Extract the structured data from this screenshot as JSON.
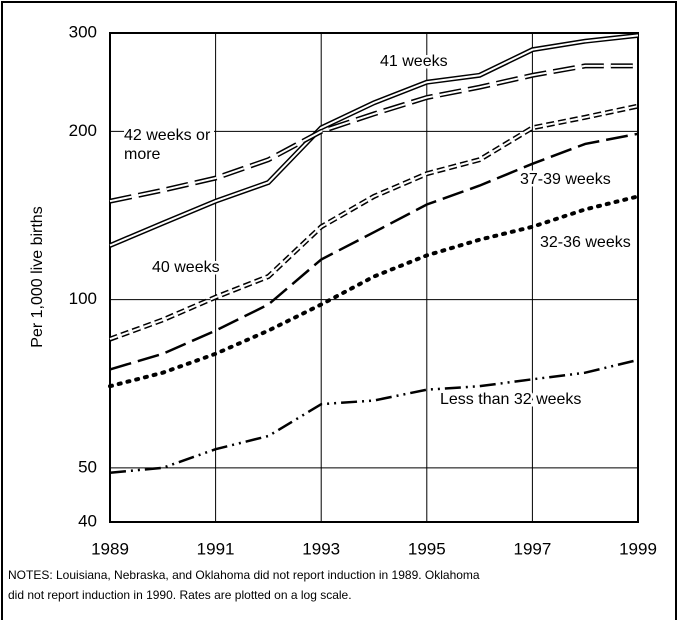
{
  "chart_data": {
    "type": "line",
    "y_label": "Per 1,000 live births",
    "notes": [
      "NOTES: Louisiana, Nebraska, and Oklahoma did not report induction in 1989. Oklahoma",
      "did not report induction in 1990. Rates are plotted on a log scale."
    ],
    "x": [
      1989,
      1990,
      1991,
      1992,
      1993,
      1994,
      1995,
      1996,
      1997,
      1998,
      1999
    ],
    "xlim": [
      1989,
      1999
    ],
    "xticks": [
      1989,
      1991,
      1993,
      1995,
      1997,
      1999
    ],
    "ylim": [
      40,
      300
    ],
    "yticks": [
      40,
      50,
      100,
      200,
      300
    ],
    "log_scale": true,
    "grid": true,
    "series": [
      {
        "name": "41 weeks",
        "color": "#000000",
        "style": "double-solid",
        "values": [
          125,
          137,
          150,
          162,
          203,
          225,
          245,
          252,
          280,
          290,
          297
        ]
      },
      {
        "name": "42 weeks or more",
        "color": "#000000",
        "style": "double-long-dash",
        "values": [
          150,
          157,
          165,
          178,
          200,
          215,
          230,
          240,
          252,
          262,
          262
        ]
      },
      {
        "name": "40 weeks",
        "color": "#000000",
        "style": "double-short-dash",
        "values": [
          85,
          92,
          101,
          110,
          135,
          153,
          168,
          178,
          203,
          212,
          222
        ]
      },
      {
        "name": "37-39 weeks",
        "color": "#000000",
        "style": "long-dash",
        "values": [
          75,
          80,
          88,
          98,
          118,
          132,
          148,
          160,
          175,
          190,
          198
        ]
      },
      {
        "name": "32-36 weeks",
        "color": "#000000",
        "style": "dotted",
        "values": [
          70,
          74,
          80,
          88,
          98,
          110,
          120,
          128,
          135,
          145,
          153
        ]
      },
      {
        "name": "Less than 32 weeks",
        "color": "#000000",
        "style": "dash-dot",
        "values": [
          49,
          50,
          54,
          57,
          65,
          66,
          69,
          70,
          72,
          74,
          78
        ]
      }
    ]
  }
}
